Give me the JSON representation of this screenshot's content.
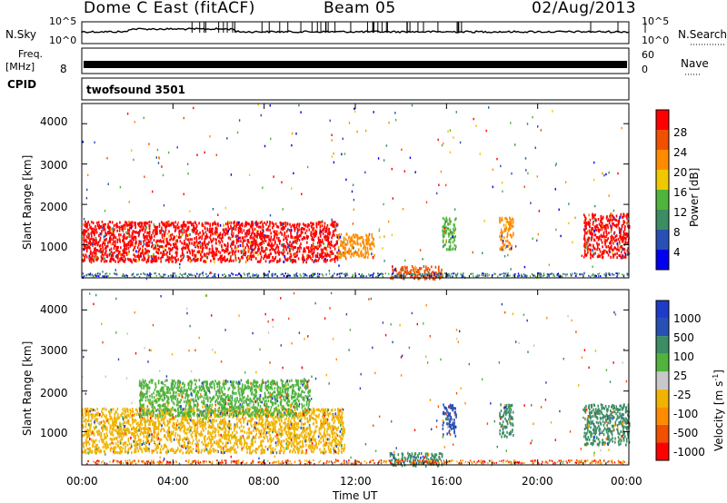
{
  "header": {
    "station": "Dome C East (fitACF)",
    "beam": "Beam 05",
    "date": "02/Aug/2013"
  },
  "top_panels": {
    "nsky_label": "N.Sky",
    "nsearch_label": "N.Search",
    "noise_ticks": [
      "10^5",
      "10^0"
    ],
    "freq_label_line1": "Freq.",
    "freq_label_line2": "[MHz]",
    "freq_ticks": [
      "8"
    ],
    "nave_label": "Nave",
    "nave_ticks": [
      "60",
      "0"
    ],
    "cpid_label": "CPID",
    "cpid_value": "twofsound 3501"
  },
  "axes": {
    "ylabel": "Slant Range [km]",
    "yticks": [
      "4000",
      "3000",
      "2000",
      "1000"
    ],
    "xlabel": "Time UT",
    "xticks": [
      "00:00",
      "04:00",
      "08:00",
      "12:00",
      "16:00",
      "20:00",
      "00:00"
    ]
  },
  "power_colorbar": {
    "label": "Power [dB]",
    "ticks": [
      "28",
      "24",
      "20",
      "16",
      "12",
      "8",
      "4"
    ],
    "colors": [
      "#0000f0",
      "#2850b4",
      "#3c8c64",
      "#50b43c",
      "#f0c800",
      "#ff8c00",
      "#f05000",
      "#ff0000"
    ]
  },
  "velocity_colorbar": {
    "label": "Velocity [m s",
    "label_superscript": "-1",
    "label_close": "]",
    "ticks": [
      "1000",
      "500",
      "100",
      "25",
      "-25",
      "-100",
      "-500",
      "-1000"
    ],
    "colors": [
      "#ff0000",
      "#f05000",
      "#ff8c00",
      "#f0b400",
      "#c8c8c8",
      "#50b43c",
      "#3c8c64",
      "#2850b4",
      "#1e3cc8"
    ]
  },
  "chart_data": {
    "type": "heatmap",
    "x_label": "Time UT",
    "y_label": "Slant Range [km]",
    "xlim_hours": [
      0,
      24
    ],
    "ylim_km": [
      180,
      4500
    ],
    "panels": [
      {
        "name": "Power [dB]",
        "range_db": [
          0,
          32
        ],
        "scatter_regions": [
          {
            "t_start": 0.0,
            "t_end": 11.2,
            "r_min": 600,
            "r_max": 1600,
            "dominant": "28"
          },
          {
            "t_start": 11.2,
            "t_end": 12.8,
            "r_min": 700,
            "r_max": 1300,
            "dominant": "20"
          },
          {
            "t_start": 13.5,
            "t_end": 15.8,
            "r_min": 180,
            "r_max": 500,
            "dominant": "24"
          },
          {
            "t_start": 15.8,
            "t_end": 16.4,
            "r_min": 900,
            "r_max": 1700,
            "dominant": "12"
          },
          {
            "t_start": 18.3,
            "t_end": 18.9,
            "r_min": 900,
            "r_max": 1700,
            "dominant": "20"
          },
          {
            "t_start": 22.0,
            "t_end": 24.0,
            "r_min": 700,
            "r_max": 1800,
            "dominant": "28"
          }
        ]
      },
      {
        "name": "Velocity [m s-1]",
        "range_ms": [
          -1000,
          1000
        ],
        "scatter_regions": [
          {
            "t_start": 0.0,
            "t_end": 11.5,
            "r_min": 500,
            "r_max": 1600,
            "dominant": "-100"
          },
          {
            "t_start": 2.5,
            "t_end": 10.0,
            "r_min": 1400,
            "r_max": 2300,
            "dominant": "25"
          },
          {
            "t_start": 13.5,
            "t_end": 15.8,
            "r_min": 180,
            "r_max": 500,
            "dominant": "100"
          },
          {
            "t_start": 15.8,
            "t_end": 16.4,
            "r_min": 900,
            "r_max": 1700,
            "dominant": "500"
          },
          {
            "t_start": 18.3,
            "t_end": 18.9,
            "r_min": 900,
            "r_max": 1700,
            "dominant": "100"
          },
          {
            "t_start": 22.0,
            "t_end": 24.0,
            "r_min": 700,
            "r_max": 1700,
            "dominant": "100"
          }
        ]
      }
    ]
  }
}
